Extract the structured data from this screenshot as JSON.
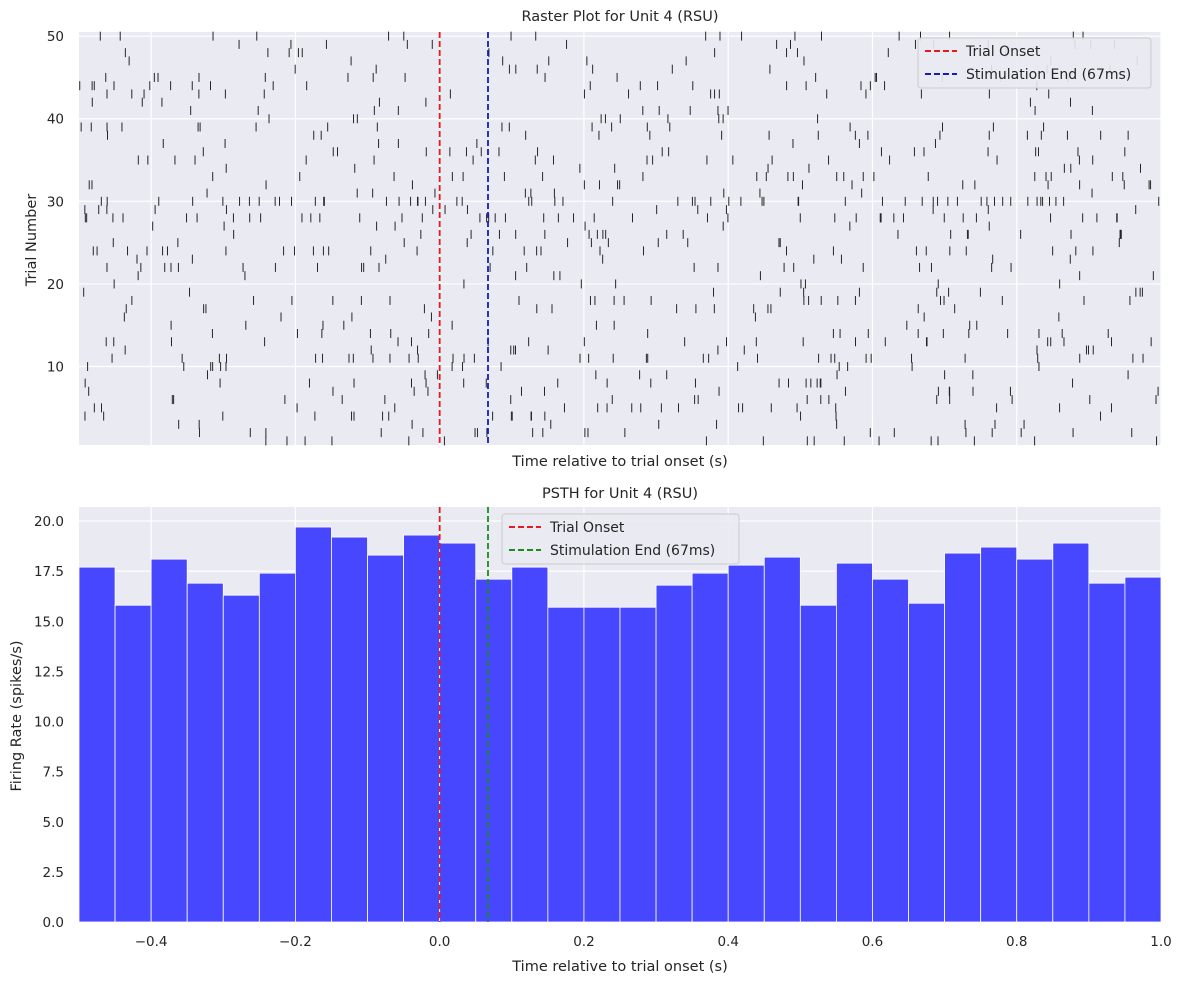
{
  "chart_data": [
    {
      "type": "scatter",
      "title": "Raster Plot for Unit 4 (RSU)",
      "xlabel": "Time relative to trial onset (s)",
      "ylabel": "Trial Number",
      "xlim": [
        -0.5,
        1.0
      ],
      "ylim": [
        0.5,
        50.5
      ],
      "yticks": [
        10,
        20,
        30,
        40,
        50
      ],
      "n_trials": 50,
      "grid": true,
      "legend_position": "top-right",
      "vlines": [
        {
          "x": 0.0,
          "color": "#e41a1c",
          "style": "dashed",
          "label": "Trial Onset"
        },
        {
          "x": 0.067,
          "color": "#1a1ab8",
          "style": "dashed",
          "label": "Stimulation End (67ms)"
        }
      ],
      "spike_color": "#262626"
    },
    {
      "type": "bar",
      "title": "PSTH for Unit 4 (RSU)",
      "xlabel": "Time relative to trial onset (s)",
      "ylabel": "Firing Rate (spikes/s)",
      "xlim": [
        -0.5,
        1.0
      ],
      "ylim": [
        0,
        20.7
      ],
      "xticks": [
        -0.4,
        -0.2,
        0.0,
        0.2,
        0.4,
        0.6,
        0.8,
        1.0
      ],
      "xtick_labels": [
        "−0.4",
        "−0.2",
        "0.0",
        "0.2",
        "0.4",
        "0.6",
        "0.8",
        "1.0"
      ],
      "yticks": [
        0.0,
        2.5,
        5.0,
        7.5,
        10.0,
        12.5,
        15.0,
        17.5,
        20.0
      ],
      "ytick_labels": [
        "0.0",
        "2.5",
        "5.0",
        "7.5",
        "10.0",
        "12.5",
        "15.0",
        "17.5",
        "20.0"
      ],
      "bin_width": 0.05,
      "bin_starts": [
        -0.5,
        -0.45,
        -0.4,
        -0.35,
        -0.3,
        -0.25,
        -0.2,
        -0.15,
        -0.1,
        -0.05,
        0.0,
        0.05,
        0.1,
        0.15,
        0.2,
        0.25,
        0.3,
        0.35,
        0.4,
        0.45,
        0.5,
        0.55,
        0.6,
        0.65,
        0.7,
        0.75,
        0.8,
        0.85,
        0.9,
        0.95
      ],
      "values": [
        17.7,
        15.8,
        18.1,
        16.9,
        16.3,
        17.4,
        19.7,
        19.2,
        18.3,
        19.3,
        18.9,
        17.1,
        17.7,
        15.7,
        15.7,
        15.7,
        16.8,
        17.4,
        17.8,
        18.2,
        15.8,
        17.9,
        17.1,
        15.9,
        18.4,
        18.7,
        18.1,
        18.9,
        16.9,
        17.2
      ],
      "bar_color": "#4747ff",
      "grid": true,
      "legend_position": "top-center",
      "vlines": [
        {
          "x": 0.0,
          "color": "#e41a1c",
          "style": "dashed",
          "label": "Trial Onset"
        },
        {
          "x": 0.067,
          "color": "#1a8c1a",
          "style": "dashed",
          "label": "Stimulation End (67ms)"
        }
      ]
    }
  ]
}
